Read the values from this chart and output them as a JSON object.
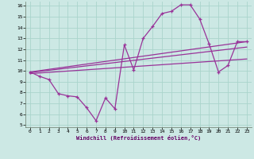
{
  "xlabel": "Windchill (Refroidissement éolien,°C)",
  "background_color": "#cce8e4",
  "grid_color": "#aad4cc",
  "line_color": "#993399",
  "xlim": [
    -0.5,
    23.5
  ],
  "ylim": [
    4.8,
    16.4
  ],
  "xticks": [
    0,
    1,
    2,
    3,
    4,
    5,
    6,
    7,
    8,
    9,
    10,
    11,
    12,
    13,
    14,
    15,
    16,
    17,
    18,
    19,
    20,
    21,
    22,
    23
  ],
  "yticks": [
    5,
    6,
    7,
    8,
    9,
    10,
    11,
    12,
    13,
    14,
    15,
    16
  ],
  "series1_x": [
    0,
    1,
    2,
    3,
    4,
    5,
    6,
    7,
    8,
    9,
    10,
    11,
    12,
    13,
    14,
    15,
    16,
    17,
    18,
    19,
    20,
    21,
    22,
    23
  ],
  "series1_y": [
    9.9,
    9.5,
    9.2,
    7.9,
    7.7,
    7.6,
    6.6,
    5.4,
    7.5,
    6.5,
    12.4,
    10.1,
    13.0,
    14.1,
    15.3,
    15.5,
    16.1,
    16.1,
    14.8,
    12.5,
    9.9,
    10.5,
    12.7,
    12.7
  ],
  "line2_x0": 0,
  "line2_y0": 9.9,
  "line2_x1": 23,
  "line2_y1": 12.7,
  "line3_x0": 0,
  "line3_y0": 9.85,
  "line3_x1": 23,
  "line3_y1": 12.2,
  "line4_x0": 0,
  "line4_y0": 9.75,
  "line4_x1": 23,
  "line4_y1": 11.1
}
